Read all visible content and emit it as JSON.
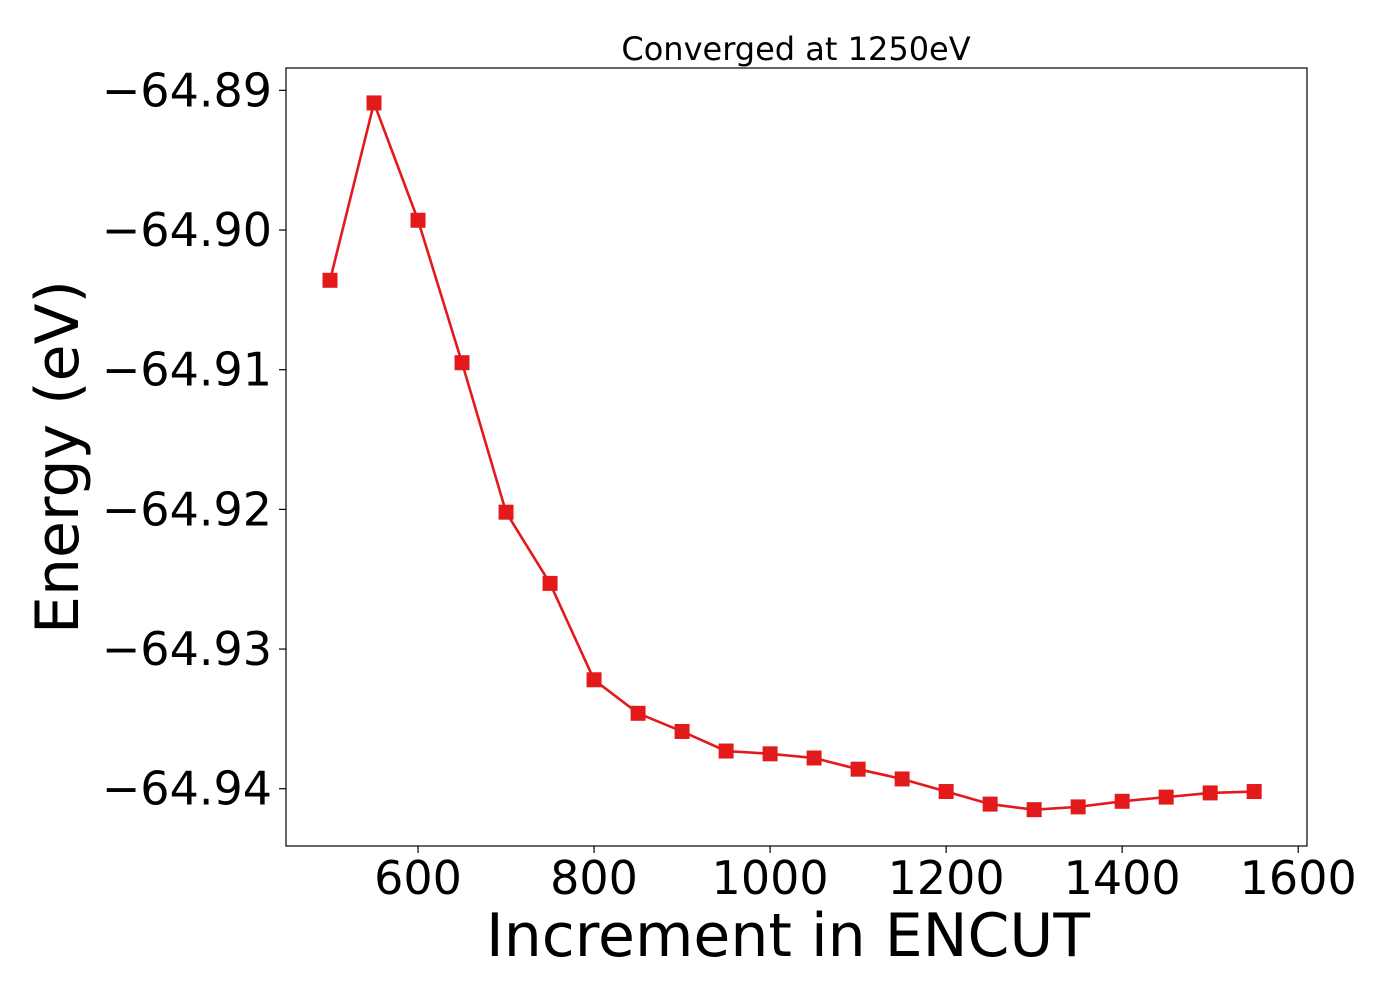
{
  "chart_data": {
    "type": "line",
    "title": "Converged at 1250eV",
    "xlabel": "Increment in ENCUT",
    "ylabel": "Energy (eV)",
    "xlim": [
      450,
      1610
    ],
    "ylim": [
      -64.9441,
      -64.8884
    ],
    "x_ticks": [
      600,
      800,
      1000,
      1200,
      1400,
      1600
    ],
    "x_tick_labels": [
      "600",
      "800",
      "1000",
      "1200",
      "1400",
      "1600"
    ],
    "y_ticks": [
      -64.89,
      -64.9,
      -64.91,
      -64.92,
      -64.93,
      -64.94
    ],
    "y_tick_labels": [
      "−64.89",
      "−64.90",
      "−64.91",
      "−64.92",
      "−64.93",
      "−64.94"
    ],
    "grid": false,
    "marker": "square",
    "color": "#e31a1c",
    "series": [
      {
        "x": [
          500,
          550,
          600,
          650,
          700,
          750,
          800,
          850,
          900,
          950,
          1000,
          1050,
          1100,
          1150,
          1200,
          1250,
          1300,
          1350,
          1400,
          1450,
          1500,
          1550
        ],
        "y": [
          -64.9036,
          -64.8909,
          -64.8993,
          -64.9095,
          -64.9202,
          -64.9253,
          -64.9322,
          -64.9346,
          -64.9359,
          -64.9373,
          -64.9375,
          -64.9378,
          -64.9386,
          -64.9393,
          -64.9402,
          -64.9411,
          -64.9415,
          -64.9413,
          -64.9409,
          -64.9406,
          -64.9403,
          -64.9402
        ]
      }
    ]
  }
}
